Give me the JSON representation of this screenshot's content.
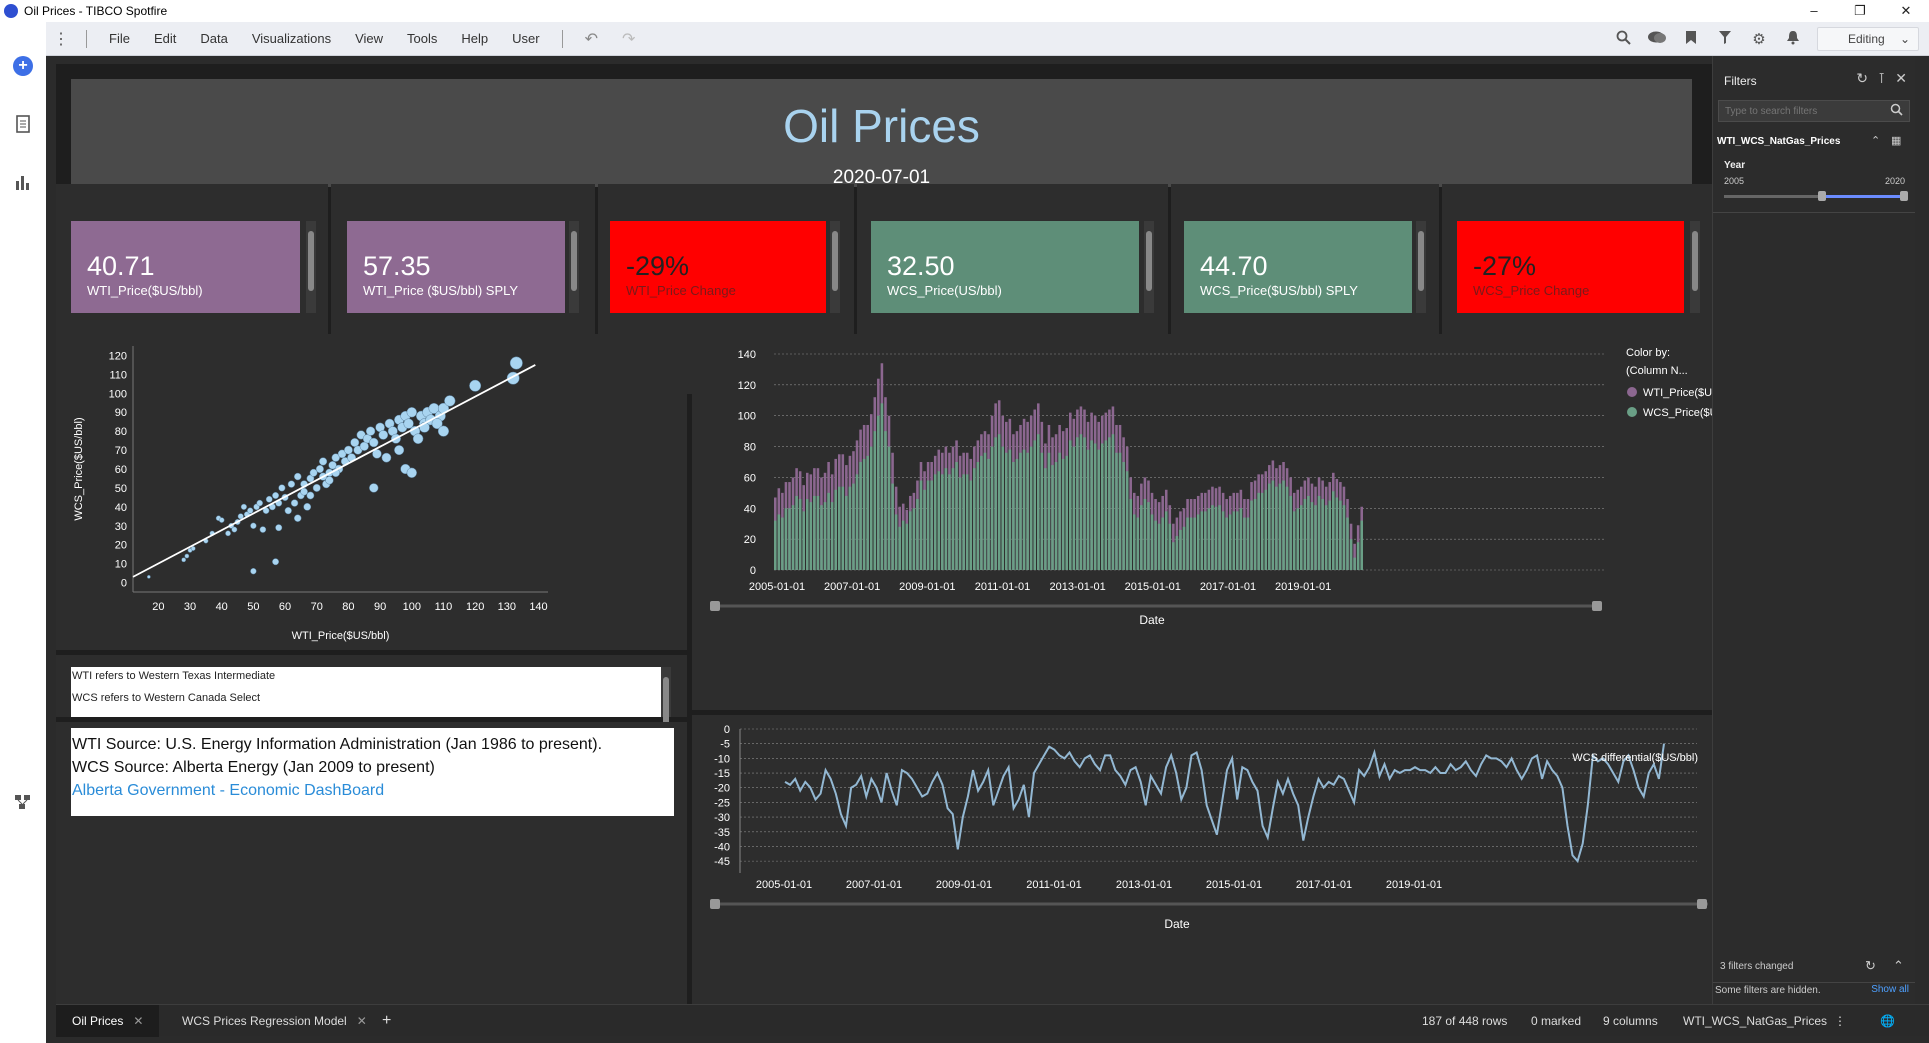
{
  "window": {
    "title": "Oil Prices - TIBCO Spotfire",
    "controls": [
      "–",
      "❐",
      "✕"
    ]
  },
  "menu": {
    "items": [
      "File",
      "Edit",
      "Data",
      "Visualizations",
      "View",
      "Tools",
      "Help",
      "User"
    ],
    "mode": "Editing"
  },
  "header": {
    "title": "Oil Prices",
    "date": "2020-07-01"
  },
  "colors": {
    "purple": "#8e6a92",
    "green": "#5e8e78",
    "red": "#ff0000",
    "scatter": "#a8d4f0",
    "wti_bar": "#8c6790",
    "wcs_bar": "#6a9f86",
    "diff_line": "#93b8d3"
  },
  "kpis": [
    {
      "value": "40.71",
      "label": "WTI_Price($US/bbl)"
    },
    {
      "value": "57.35",
      "label": "WTI_Price ($US/bbl) SPLY"
    },
    {
      "value": "-29%",
      "label": "WTI_Price Change"
    },
    {
      "value": "32.50",
      "label": "WCS_Price(US/bbl)"
    },
    {
      "value": "44.70",
      "label": "WCS_Price($US/bbl) SPLY"
    },
    {
      "value": "-27%",
      "label": "WCS_Price Change"
    }
  ],
  "notes": {
    "line1": "WTI refers to Western Texas Intermediate",
    "line2": "WCS refers to Western Canada Select"
  },
  "sources": {
    "wti": "WTI Source: U.S. Energy Information Administration (Jan 1986 to present).",
    "wcs": "WCS Source: Alberta Energy (Jan 2009 to present)",
    "link": "Alberta Government - Economic DashBoard"
  },
  "chart_data": [
    {
      "type": "scatter",
      "xlabel": "WTI_Price($US/bbl)",
      "ylabel": "WCS_Price($US/bbl)",
      "xlim": [
        12,
        143
      ],
      "ylim": [
        -5,
        125
      ],
      "xticks": [
        20,
        30,
        40,
        50,
        60,
        70,
        80,
        90,
        100,
        110,
        120,
        130,
        140
      ],
      "yticks": [
        0,
        10,
        20,
        30,
        40,
        50,
        60,
        70,
        80,
        90,
        100,
        110,
        120
      ],
      "trendline": [
        [
          12,
          3
        ],
        [
          139,
          115
        ]
      ],
      "points": [
        [
          17,
          3
        ],
        [
          28,
          12
        ],
        [
          29,
          14
        ],
        [
          30,
          17
        ],
        [
          31,
          18
        ],
        [
          35,
          22
        ],
        [
          37,
          26
        ],
        [
          39,
          34
        ],
        [
          40,
          33
        ],
        [
          42,
          26
        ],
        [
          43,
          30
        ],
        [
          44,
          28
        ],
        [
          45,
          32
        ],
        [
          46,
          35
        ],
        [
          47,
          40
        ],
        [
          48,
          36
        ],
        [
          49,
          38
        ],
        [
          50,
          30
        ],
        [
          51,
          40
        ],
        [
          52,
          42
        ],
        [
          53,
          28
        ],
        [
          54,
          38
        ],
        [
          55,
          44
        ],
        [
          56,
          40
        ],
        [
          57,
          46
        ],
        [
          58,
          42
        ],
        [
          59,
          50
        ],
        [
          60,
          45
        ],
        [
          61,
          38
        ],
        [
          62,
          52
        ],
        [
          63,
          42
        ],
        [
          64,
          56
        ],
        [
          65,
          46
        ],
        [
          66,
          52
        ],
        [
          67,
          40
        ],
        [
          68,
          55
        ],
        [
          69,
          58
        ],
        [
          70,
          50
        ],
        [
          71,
          60
        ],
        [
          72,
          64
        ],
        [
          73,
          52
        ],
        [
          74,
          58
        ],
        [
          75,
          62
        ],
        [
          76,
          66
        ],
        [
          77,
          60
        ],
        [
          78,
          68
        ],
        [
          79,
          64
        ],
        [
          80,
          70
        ],
        [
          81,
          66
        ],
        [
          82,
          74
        ],
        [
          83,
          70
        ],
        [
          84,
          78
        ],
        [
          85,
          72
        ],
        [
          86,
          76
        ],
        [
          87,
          80
        ],
        [
          88,
          74
        ],
        [
          89,
          68
        ],
        [
          90,
          82
        ],
        [
          91,
          78
        ],
        [
          92,
          66
        ],
        [
          93,
          84
        ],
        [
          94,
          80
        ],
        [
          95,
          76
        ],
        [
          96,
          86
        ],
        [
          97,
          82
        ],
        [
          98,
          88
        ],
        [
          99,
          84
        ],
        [
          100,
          90
        ],
        [
          101,
          80
        ],
        [
          102,
          76
        ],
        [
          103,
          88
        ],
        [
          104,
          84
        ],
        [
          105,
          90
        ],
        [
          106,
          86
        ],
        [
          107,
          92
        ],
        [
          109,
          88
        ],
        [
          110,
          92
        ],
        [
          112,
          96
        ],
        [
          120,
          104
        ],
        [
          132,
          108
        ],
        [
          133,
          116
        ],
        [
          88,
          50
        ],
        [
          96,
          70
        ],
        [
          98,
          60
        ],
        [
          100,
          58
        ],
        [
          72,
          56
        ],
        [
          74,
          54
        ],
        [
          76,
          58
        ],
        [
          66,
          48
        ],
        [
          64,
          34
        ],
        [
          58,
          29
        ],
        [
          68,
          46
        ],
        [
          50,
          6
        ],
        [
          57,
          11
        ],
        [
          104,
          82
        ],
        [
          108,
          84
        ],
        [
          110,
          80
        ]
      ]
    },
    {
      "type": "bar",
      "xlabel": "Date",
      "legend_title": "Color by:",
      "legend_subtitle": "(Column N...",
      "ylim": [
        0,
        140
      ],
      "yticks": [
        0,
        20,
        40,
        60,
        80,
        100,
        120,
        140
      ],
      "xticks": [
        "2005-01-01",
        "2007-01-01",
        "2009-01-01",
        "2011-01-01",
        "2013-01-01",
        "2015-01-01",
        "2017-01-01",
        "2019-01-01"
      ],
      "series": [
        {
          "name": "WTI_Price($US/bbl)",
          "values": [
            47,
            53,
            50,
            57,
            57,
            60,
            66,
            64,
            55,
            63,
            62,
            66,
            66,
            60,
            63,
            70,
            62,
            72,
            75,
            75,
            68,
            74,
            77,
            84,
            91,
            94,
            94,
            101,
            112,
            124,
            134,
            112,
            100,
            76,
            54,
            41,
            43,
            39,
            48,
            50,
            58,
            70,
            64,
            70,
            70,
            74,
            78,
            76,
            80,
            76,
            80,
            84,
            74,
            76,
            76,
            72,
            80,
            84,
            88,
            90,
            88,
            100,
            108,
            110,
            100,
            96,
            98,
            88,
            90,
            94,
            98,
            96,
            100,
            104,
            108,
            96,
            82,
            94,
            86,
            88,
            94,
            90,
            92,
            102,
            98,
            104,
            106,
            104,
            96,
            102,
            100,
            96,
            100,
            102,
            104,
            106,
            94,
            94,
            86,
            80,
            60,
            50,
            48,
            56,
            60,
            58,
            50,
            46,
            44,
            48,
            52,
            42,
            30,
            34,
            38,
            40,
            46,
            46,
            46,
            48,
            50,
            50,
            52,
            54,
            53,
            54,
            50,
            46,
            48,
            50,
            50,
            52,
            46,
            46,
            57,
            58,
            62,
            62,
            64,
            68,
            71,
            66,
            68,
            70,
            66,
            60,
            50,
            52,
            54,
            58,
            60,
            56,
            54,
            60,
            58,
            54,
            57,
            63,
            59,
            57,
            54,
            46,
            30,
            17,
            29,
            41
          ]
        },
        {
          "name": "WCS_Price($US/bbl)",
          "values": [
            32,
            36,
            34,
            40,
            40,
            42,
            48,
            46,
            38,
            46,
            44,
            48,
            48,
            42,
            44,
            50,
            44,
            52,
            54,
            54,
            48,
            54,
            56,
            62,
            70,
            72,
            74,
            80,
            90,
            100,
            108,
            90,
            80,
            56,
            36,
            28,
            32,
            30,
            38,
            40,
            46,
            58,
            52,
            58,
            58,
            62,
            64,
            62,
            66,
            62,
            66,
            70,
            60,
            62,
            62,
            58,
            66,
            70,
            74,
            76,
            72,
            80,
            86,
            88,
            80,
            76,
            78,
            70,
            72,
            76,
            78,
            76,
            80,
            84,
            88,
            76,
            66,
            76,
            68,
            70,
            76,
            72,
            74,
            84,
            80,
            86,
            88,
            86,
            78,
            84,
            82,
            78,
            82,
            84,
            86,
            88,
            76,
            76,
            70,
            64,
            46,
            36,
            34,
            42,
            46,
            44,
            36,
            32,
            30,
            34,
            38,
            30,
            18,
            22,
            26,
            28,
            34,
            34,
            34,
            36,
            38,
            38,
            40,
            42,
            41,
            42,
            38,
            34,
            36,
            38,
            38,
            40,
            34,
            34,
            45,
            46,
            50,
            50,
            52,
            56,
            58,
            54,
            56,
            58,
            54,
            48,
            38,
            40,
            42,
            46,
            48,
            44,
            42,
            48,
            46,
            42,
            45,
            51,
            47,
            45,
            42,
            34,
            20,
            8,
            18,
            32
          ]
        }
      ]
    },
    {
      "type": "line",
      "xlabel": "Date",
      "series_label": "WCS differential($US/bbl)",
      "ylim": [
        -47,
        0
      ],
      "yticks": [
        0,
        -5,
        -10,
        -15,
        -20,
        -25,
        -30,
        -35,
        -40,
        -45
      ],
      "xticks": [
        "2005-01-01",
        "2007-01-01",
        "2009-01-01",
        "2011-01-01",
        "2013-01-01",
        "2015-01-01",
        "2017-01-01",
        "2019-01-01"
      ],
      "values": [
        -18,
        -19,
        -17,
        -21,
        -18,
        -20,
        -24,
        -22,
        -14,
        -17,
        -22,
        -29,
        -33,
        -20,
        -19,
        -16,
        -23,
        -17,
        -20,
        -25,
        -15,
        -21,
        -26,
        -14,
        -15,
        -17,
        -20,
        -23,
        -22,
        -18,
        -15,
        -19,
        -27,
        -29,
        -41,
        -30,
        -23,
        -14,
        -21,
        -18,
        -14,
        -26,
        -21,
        -16,
        -13,
        -27,
        -24,
        -19,
        -30,
        -15,
        -12,
        -9,
        -6,
        -7,
        -9,
        -10,
        -8,
        -11,
        -13,
        -10,
        -9,
        -12,
        -14,
        -9,
        -9,
        -14,
        -16,
        -19,
        -14,
        -13,
        -18,
        -26,
        -16,
        -19,
        -22,
        -13,
        -9,
        -15,
        -24,
        -20,
        -9,
        -8,
        -14,
        -26,
        -31,
        -36,
        -25,
        -14,
        -10,
        -24,
        -13,
        -14,
        -18,
        -21,
        -33,
        -37,
        -27,
        -18,
        -22,
        -17,
        -22,
        -26,
        -38,
        -30,
        -23,
        -17,
        -20,
        -18,
        -19,
        -16,
        -17,
        -21,
        -25,
        -14,
        -16,
        -13,
        -8,
        -16,
        -12,
        -17,
        -14,
        -15,
        -14,
        -14,
        -13,
        -14,
        -14,
        -15,
        -13,
        -15,
        -15,
        -12,
        -14,
        -13,
        -11,
        -14,
        -16,
        -12,
        -9,
        -10,
        -10,
        -11,
        -13,
        -10,
        -14,
        -17,
        -14,
        -10,
        -9,
        -17,
        -11,
        -14,
        -16,
        -20,
        -33,
        -43,
        -45,
        -39,
        -26,
        -9,
        -11,
        -10,
        -12,
        -15,
        -18,
        -11,
        -9,
        -14,
        -20,
        -23,
        -15,
        -12,
        -17,
        -5
      ]
    }
  ],
  "filters": {
    "title": "Filters",
    "search_placeholder": "Type to search filters",
    "table_name": "WTI_WCS_NatGas_Prices",
    "field": "Year",
    "min": "2005",
    "max": "2020",
    "changed": "3 filters changed",
    "hidden": "Some filters are hidden.",
    "show_all": "Show all"
  },
  "status": {
    "tab1": "Oil Prices",
    "tab2": "WCS Prices Regression Model",
    "rows": "187 of 448 rows",
    "marked": "0 marked",
    "columns": "9 columns",
    "table": "WTI_WCS_NatGas_Prices"
  }
}
